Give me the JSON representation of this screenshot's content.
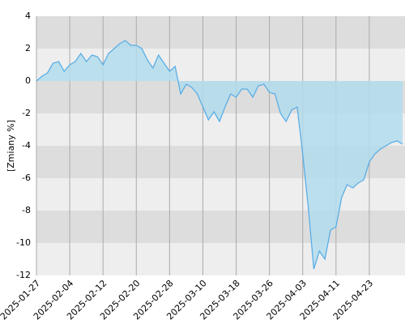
{
  "chart_data": {
    "type": "area",
    "y_label": "[Zmiany %]",
    "categories": [
      "2025-01-27",
      null,
      null,
      null,
      null,
      null,
      "2025-02-04",
      null,
      null,
      null,
      null,
      null,
      "2025-02-12",
      null,
      null,
      null,
      null,
      null,
      "2025-02-20",
      null,
      null,
      null,
      null,
      null,
      "2025-02-28",
      null,
      null,
      null,
      null,
      null,
      "2025-03-10",
      null,
      null,
      null,
      null,
      null,
      "2025-03-18",
      null,
      null,
      null,
      null,
      null,
      "2025-03-26",
      null,
      null,
      null,
      null,
      null,
      "2025-04-03",
      null,
      null,
      null,
      null,
      null,
      "2025-04-11",
      null,
      null,
      null,
      null,
      null,
      "2025-04-23",
      null,
      null,
      null,
      null,
      null,
      null
    ],
    "series": [
      {
        "color": "#5aaee6",
        "fill": "#b3dcec",
        "values": [
          0,
          0.3,
          0.5,
          1.1,
          1.2,
          0.6,
          1.0,
          1.2,
          1.7,
          1.2,
          1.6,
          1.5,
          1.0,
          1.7,
          2.0,
          2.3,
          2.5,
          2.2,
          2.2,
          2.0,
          1.3,
          0.8,
          1.6,
          1.1,
          0.6,
          0.9,
          -0.8,
          -0.2,
          -0.4,
          -0.8,
          -1.6,
          -2.4,
          -1.9,
          -2.5,
          -1.6,
          -0.8,
          -1.0,
          -0.5,
          -0.5,
          -1.0,
          -0.3,
          -0.2,
          -0.7,
          -0.8,
          -2.0,
          -2.5,
          -1.8,
          -1.6,
          -4.5,
          -7.8,
          -11.6,
          -10.5,
          -11.0,
          -9.2,
          -9.0,
          -7.2,
          -6.4,
          -6.6,
          -6.3,
          -6.1,
          -5.0,
          -4.5,
          -4.2,
          -4.0,
          -3.8,
          -3.7,
          -3.9
        ]
      }
    ],
    "ylim": [
      -12,
      4
    ],
    "yticks": [
      -12,
      -10,
      -8,
      -6,
      -4,
      -2,
      0,
      2,
      4
    ],
    "grid": true
  }
}
